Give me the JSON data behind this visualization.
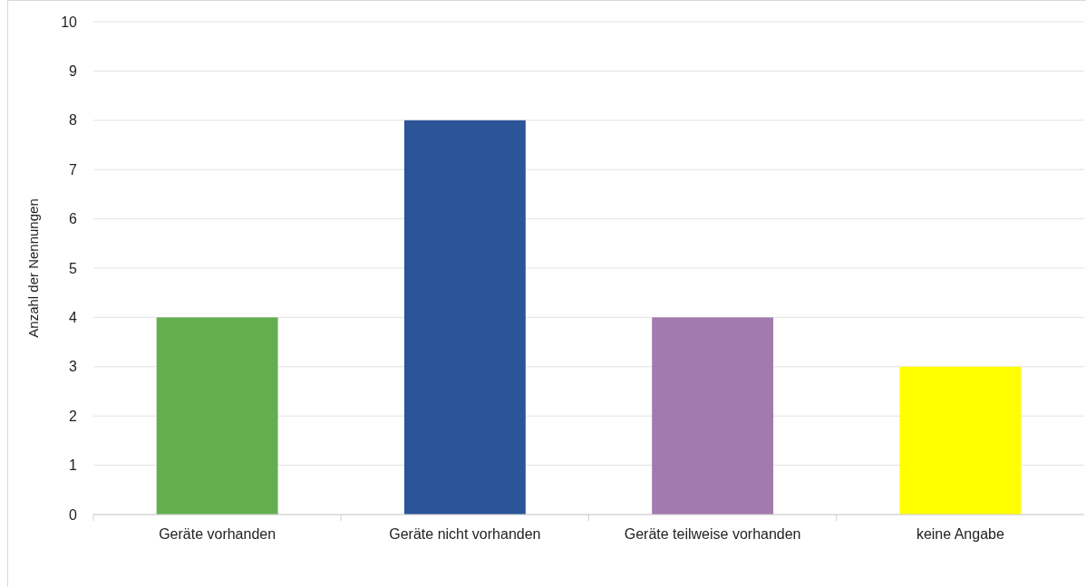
{
  "chart_data": {
    "type": "bar",
    "ylabel": "Anzahl der Nennungen",
    "categories": [
      "Geräte vorhanden",
      "Geräte nicht vorhanden",
      "Geräte teilweise vorhanden",
      "keine Angabe"
    ],
    "values": [
      4,
      8,
      4,
      3
    ],
    "colors": [
      "#63ae4f",
      "#2b5499",
      "#a27aad",
      "#ffff00"
    ],
    "ylim": [
      0,
      10
    ],
    "yticks": [
      0,
      1,
      2,
      3,
      4,
      5,
      6,
      7,
      8,
      9,
      10
    ],
    "grid": "y"
  }
}
